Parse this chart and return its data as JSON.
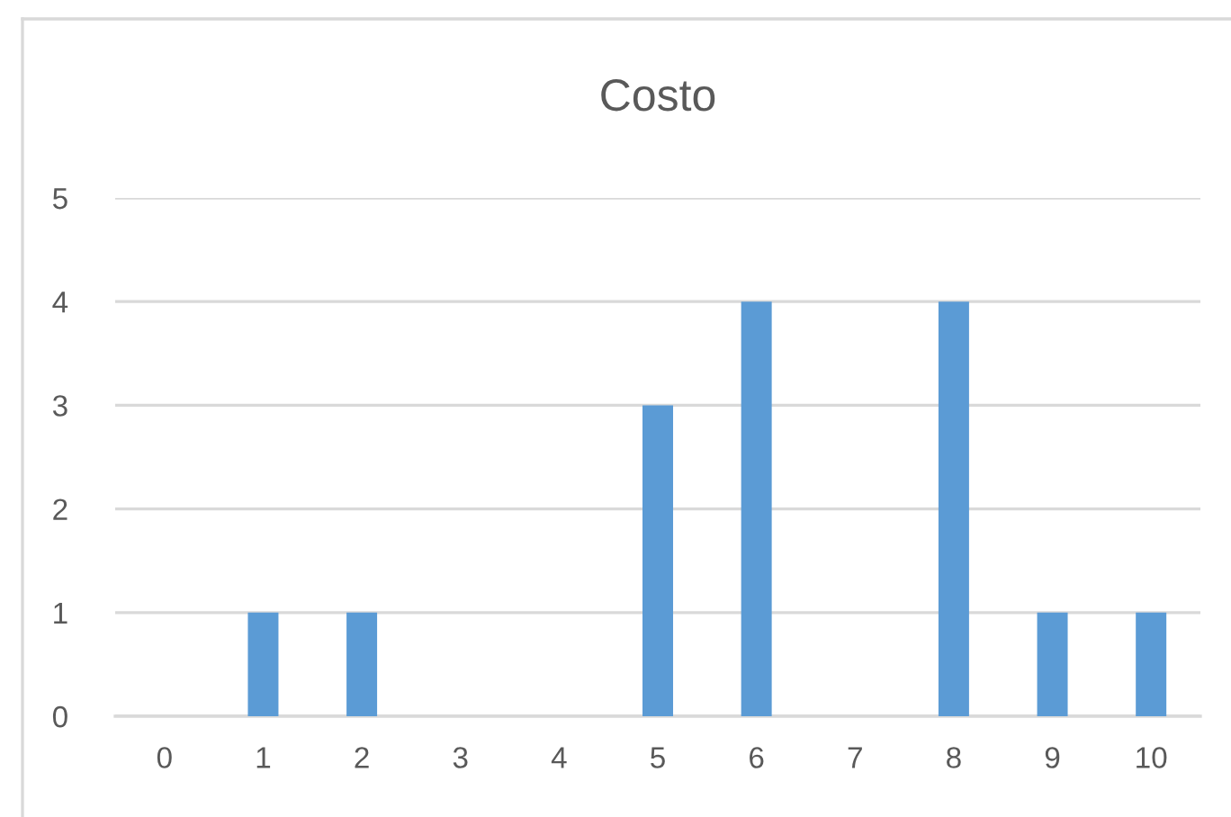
{
  "chart_data": {
    "type": "bar",
    "title": "Costo",
    "categories": [
      "0",
      "1",
      "2",
      "3",
      "4",
      "5",
      "6",
      "7",
      "8",
      "9",
      "10"
    ],
    "values": [
      0,
      1,
      1,
      0,
      0,
      3,
      4,
      0,
      4,
      1,
      1
    ],
    "color": "#5b9bd5",
    "ylim": [
      0,
      5
    ],
    "yticks": [
      0,
      1,
      2,
      3,
      4,
      5
    ],
    "grid": "y"
  }
}
